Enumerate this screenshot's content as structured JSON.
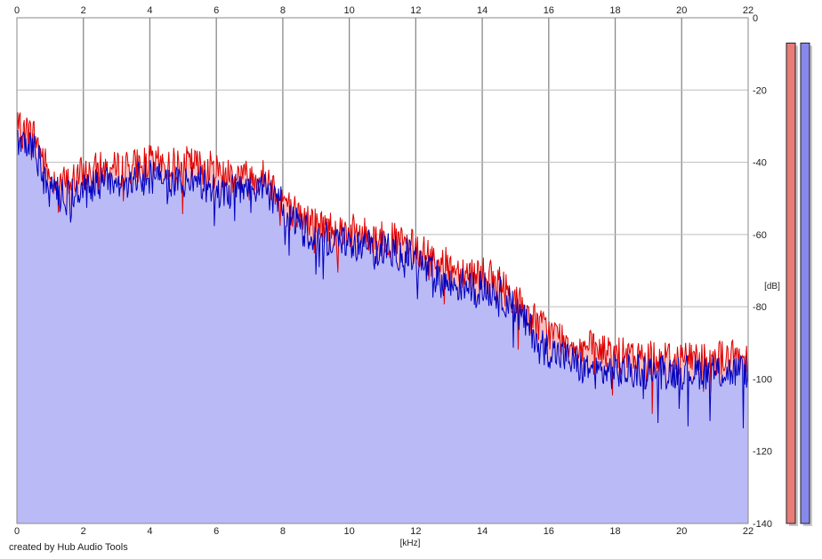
{
  "footer": {
    "credit": "created by Hub Audio Tools"
  },
  "chart_data": {
    "type": "area",
    "xlabel": "[kHz]",
    "ylabel": "[dB]",
    "xlim": [
      0,
      22
    ],
    "ylim": [
      -140,
      0
    ],
    "x_ticks": [
      "0",
      "2",
      "4",
      "6",
      "8",
      "10",
      "12",
      "14",
      "16",
      "18",
      "20",
      "22"
    ],
    "y_ticks": [
      "0",
      "-20",
      "-40",
      "-60",
      "-80",
      "-100",
      "-120",
      "-140"
    ],
    "y_ticks_values": [
      0,
      -20,
      -40,
      -60,
      -80,
      -100,
      -120,
      -140
    ],
    "x_tick_values": [
      0,
      2,
      4,
      6,
      8,
      10,
      12,
      14,
      16,
      18,
      20,
      22
    ],
    "grid": true,
    "colors": {
      "red_line": "#e00000",
      "red_fill": "#f7c0c0",
      "blue_line": "#0000c0",
      "blue_fill": "#babaf6",
      "red_meter": "#e87c78",
      "blue_meter": "#8888ec",
      "grid": "#bdbdbd",
      "major_grid": "#8a8a8a"
    },
    "series": [
      {
        "color": "red",
        "x": [
          0,
          0.5,
          1,
          1.5,
          2,
          2.5,
          3,
          3.5,
          4,
          4.5,
          5,
          5.5,
          6,
          6.5,
          7,
          7.5,
          8,
          8.5,
          9,
          9.5,
          10,
          10.5,
          11,
          11.5,
          12,
          12.5,
          13,
          13.5,
          14,
          14.5,
          15,
          15.5,
          16,
          16.5,
          17,
          17.5,
          18,
          18.5,
          19,
          19.5,
          20,
          20.5,
          21,
          21.5,
          22
        ],
        "values": [
          -31,
          -32,
          -44,
          -46,
          -43,
          -42,
          -42,
          -41,
          -40,
          -41,
          -40,
          -41,
          -42,
          -43,
          -44,
          -44,
          -50,
          -55,
          -57,
          -58,
          -59,
          -60,
          -61,
          -62,
          -64,
          -66,
          -69,
          -70,
          -71,
          -73,
          -78,
          -83,
          -87,
          -89,
          -91,
          -92,
          -93,
          -94,
          -94,
          -94,
          -94,
          -94,
          -94,
          -94,
          -94
        ]
      },
      {
        "color": "blue",
        "x": [
          0,
          0.5,
          1,
          1.5,
          2,
          2.5,
          3,
          3.5,
          4,
          4.5,
          5,
          5.5,
          6,
          6.5,
          7,
          7.5,
          8,
          8.5,
          9,
          9.5,
          10,
          10.5,
          11,
          11.5,
          12,
          12.5,
          13,
          13.5,
          14,
          14.5,
          15,
          15.5,
          16,
          16.5,
          17,
          17.5,
          18,
          18.5,
          19,
          19.5,
          20,
          20.5,
          21,
          21.5,
          22
        ],
        "values": [
          -33,
          -36,
          -48,
          -50,
          -47,
          -46,
          -46,
          -45,
          -44,
          -45,
          -45,
          -46,
          -48,
          -48,
          -48,
          -48,
          -52,
          -58,
          -60,
          -62,
          -62,
          -63,
          -64,
          -65,
          -67,
          -71,
          -74,
          -74,
          -75,
          -76,
          -81,
          -87,
          -92,
          -94,
          -97,
          -98,
          -98,
          -98,
          -98,
          -98,
          -98,
          -98,
          -98,
          -98,
          -98
        ]
      }
    ],
    "level_meters": [
      {
        "color": "red",
        "level": -7
      },
      {
        "color": "blue",
        "level": -7
      }
    ]
  }
}
